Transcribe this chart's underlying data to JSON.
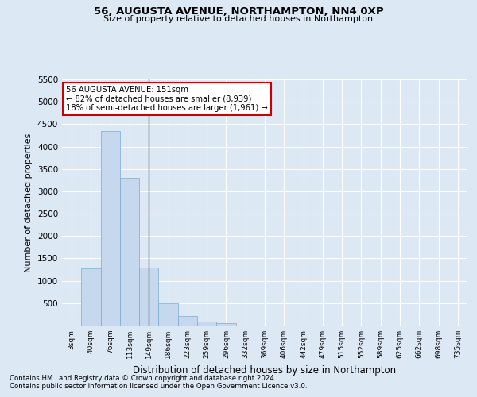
{
  "title": "56, AUGUSTA AVENUE, NORTHAMPTON, NN4 0XP",
  "subtitle": "Size of property relative to detached houses in Northampton",
  "xlabel": "Distribution of detached houses by size in Northampton",
  "ylabel": "Number of detached properties",
  "bar_color": "#c5d8ed",
  "bar_edge_color": "#7aaad0",
  "background_color": "#dde8f5",
  "grid_color": "#ffffff",
  "vline_color": "#555555",
  "vline_x_index": 4,
  "categories": [
    "3sqm",
    "40sqm",
    "76sqm",
    "113sqm",
    "149sqm",
    "186sqm",
    "223sqm",
    "259sqm",
    "296sqm",
    "332sqm",
    "369sqm",
    "406sqm",
    "442sqm",
    "479sqm",
    "515sqm",
    "552sqm",
    "589sqm",
    "625sqm",
    "662sqm",
    "698sqm",
    "735sqm"
  ],
  "values": [
    0,
    1270,
    4340,
    3300,
    1290,
    490,
    215,
    80,
    55,
    0,
    0,
    0,
    0,
    0,
    0,
    0,
    0,
    0,
    0,
    0,
    0
  ],
  "ylim": [
    0,
    5500
  ],
  "yticks": [
    0,
    500,
    1000,
    1500,
    2000,
    2500,
    3000,
    3500,
    4000,
    4500,
    5000,
    5500
  ],
  "annotation_title": "56 AUGUSTA AVENUE: 151sqm",
  "annotation_line1": "← 82% of detached houses are smaller (8,939)",
  "annotation_line2": "18% of semi-detached houses are larger (1,961) →",
  "annotation_box_color": "#ffffff",
  "annotation_box_edge": "#cc0000",
  "footer1": "Contains HM Land Registry data © Crown copyright and database right 2024.",
  "footer2": "Contains public sector information licensed under the Open Government Licence v3.0."
}
